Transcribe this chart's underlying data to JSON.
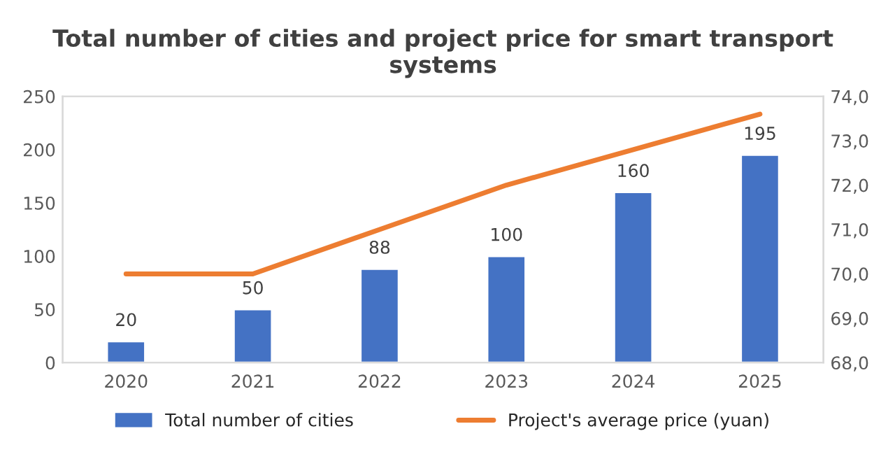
{
  "chart_data": {
    "type": "bar",
    "title": "Total number of cities and project price for smart transport systems",
    "categories": [
      "2020",
      "2021",
      "2022",
      "2023",
      "2024",
      "2025"
    ],
    "series": [
      {
        "name": "Total number of cities",
        "color": "#4472c4",
        "values": [
          20,
          50,
          88,
          100,
          160,
          195
        ],
        "value_labels": [
          "20",
          "50",
          "88",
          "100",
          "160",
          "195"
        ]
      },
      {
        "name": "Project's average price (yuan)",
        "type": "line",
        "axis": "y2",
        "color": "#ed7d31",
        "values": [
          70.0,
          70.0,
          71.0,
          72.0,
          72.8,
          73.6
        ]
      }
    ],
    "ylim": [
      0,
      250
    ],
    "yticks": [
      0,
      50,
      100,
      150,
      200,
      250
    ],
    "y2lim": [
      68,
      74
    ],
    "y2ticks": [
      {
        "value": 68,
        "label": "68,0"
      },
      {
        "value": 69,
        "label": "69,0"
      },
      {
        "value": 70,
        "label": "70,0"
      },
      {
        "value": 71,
        "label": "71,0"
      },
      {
        "value": 72,
        "label": "72,0"
      },
      {
        "value": 73,
        "label": "73,0"
      },
      {
        "value": 74,
        "label": "74,0"
      }
    ],
    "legend": "bottom",
    "grid": false
  }
}
